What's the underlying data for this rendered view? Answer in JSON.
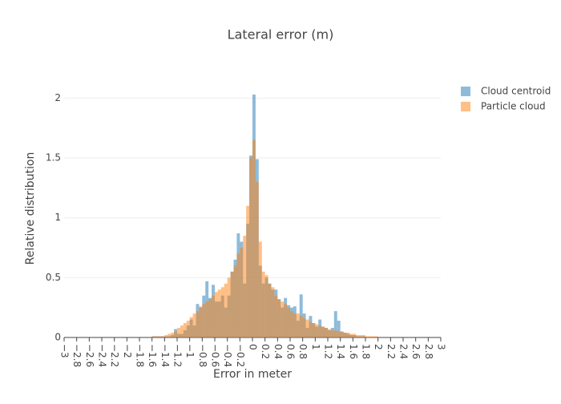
{
  "chart_data": {
    "type": "histogram",
    "title": "Lateral error (m)",
    "x_label": "Error in meter",
    "y_label": "Relative distribution",
    "bins": [
      -1.6,
      -1.55,
      -1.5,
      -1.45,
      -1.4,
      -1.35,
      -1.3,
      -1.25,
      -1.2,
      -1.15,
      -1.1,
      -1.05,
      -1,
      -0.95,
      -0.9,
      -0.85,
      -0.8,
      -0.75,
      -0.7,
      -0.65,
      -0.6,
      -0.55,
      -0.5,
      -0.45,
      -0.4,
      -0.35,
      -0.3,
      -0.25,
      -0.2,
      -0.15,
      -0.1,
      -0.05,
      0,
      0.05,
      0.1,
      0.15,
      0.2,
      0.25,
      0.3,
      0.35,
      0.4,
      0.45,
      0.5,
      0.55,
      0.6,
      0.65,
      0.7,
      0.75,
      0.8,
      0.85,
      0.9,
      0.95,
      1,
      1.05,
      1.1,
      1.15,
      1.2,
      1.25,
      1.3,
      1.35,
      1.4,
      1.45,
      1.5,
      1.55,
      1.6,
      1.65,
      1.7,
      1.75,
      1.8,
      1.85,
      1.9,
      1.95,
      2
    ],
    "series": [
      {
        "name": "Cloud centroid",
        "color": "#1f77b4",
        "values": [
          0.01,
          0.01,
          0.01,
          0.01,
          0.01,
          0.01,
          0.02,
          0.07,
          0.03,
          0.03,
          0.06,
          0.1,
          0.15,
          0.1,
          0.28,
          0.25,
          0.35,
          0.47,
          0.33,
          0.44,
          0.3,
          0.3,
          0.35,
          0.25,
          0.35,
          0.55,
          0.65,
          0.87,
          0.8,
          0.45,
          0.95,
          1.52,
          2.03,
          1.49,
          0.6,
          0.45,
          0.5,
          0.45,
          0.4,
          0.4,
          0.32,
          0.25,
          0.33,
          0.27,
          0.25,
          0.26,
          0.14,
          0.36,
          0.2,
          0.08,
          0.18,
          0.12,
          0.09,
          0.15,
          0.09,
          0.08,
          0.06,
          0.08,
          0.22,
          0.14,
          0.05,
          0.04,
          0.03,
          0.02,
          0.02,
          0.01,
          0.01,
          0.01,
          0,
          0,
          0,
          0
        ]
      },
      {
        "name": "Particle cloud",
        "color": "#ff7f0e",
        "values": [
          0.01,
          0.01,
          0.01,
          0.01,
          0.02,
          0.03,
          0.04,
          0.05,
          0.08,
          0.1,
          0.12,
          0.14,
          0.17,
          0.2,
          0.22,
          0.26,
          0.28,
          0.3,
          0.32,
          0.35,
          0.38,
          0.4,
          0.42,
          0.45,
          0.5,
          0.55,
          0.6,
          0.7,
          0.75,
          0.85,
          1.1,
          1.5,
          1.65,
          1.3,
          0.8,
          0.55,
          0.52,
          0.45,
          0.42,
          0.35,
          0.32,
          0.3,
          0.28,
          0.25,
          0.22,
          0.2,
          0.2,
          0.18,
          0.16,
          0.15,
          0.13,
          0.12,
          0.11,
          0.1,
          0.09,
          0.08,
          0.07,
          0.06,
          0.06,
          0.05,
          0.05,
          0.04,
          0.04,
          0.03,
          0.03,
          0.02,
          0.02,
          0.02,
          0.01,
          0.01,
          0.01,
          0.01
        ]
      }
    ],
    "xlim": [
      -3,
      3
    ],
    "ylim": [
      0,
      2.15
    ],
    "xticks": [
      {
        "value": -3,
        "label": "−3"
      },
      {
        "value": -2.8,
        "label": "−2.8"
      },
      {
        "value": -2.6,
        "label": "−2.6"
      },
      {
        "value": -2.4,
        "label": "−2.4"
      },
      {
        "value": -2.2,
        "label": "−2.2"
      },
      {
        "value": -2,
        "label": "−2"
      },
      {
        "value": -1.8,
        "label": "−1.8"
      },
      {
        "value": -1.6,
        "label": "−1.6"
      },
      {
        "value": -1.4,
        "label": "−1.4"
      },
      {
        "value": -1.2,
        "label": "−1.2"
      },
      {
        "value": -1,
        "label": "−1"
      },
      {
        "value": -0.8,
        "label": "−0.8"
      },
      {
        "value": -0.6,
        "label": "−0.6"
      },
      {
        "value": -0.4,
        "label": "−0.4"
      },
      {
        "value": -0.2,
        "label": "−0.2"
      },
      0,
      0.2,
      0.4,
      0.6,
      0.8,
      1,
      1.2,
      1.4,
      1.6,
      1.8,
      2,
      2.2,
      2.4,
      2.6,
      2.8,
      3
    ],
    "yticks": [
      0,
      0.5,
      1,
      1.5,
      2
    ],
    "grid": true,
    "legend": "right",
    "opacity": 0.5
  }
}
